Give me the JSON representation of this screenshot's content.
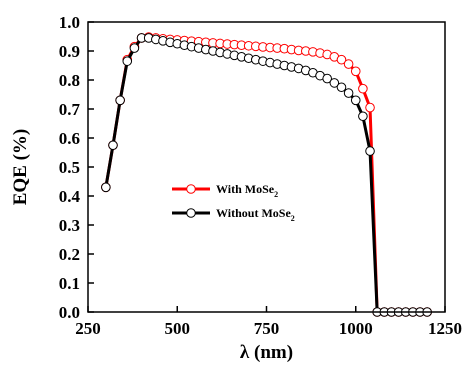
{
  "chart_data": {
    "type": "line",
    "xlabel": "λ (nm)",
    "ylabel": "EQE (%)",
    "xlim": [
      250,
      1250
    ],
    "ylim": [
      0.0,
      1.0
    ],
    "xticks": [
      250,
      500,
      750,
      1000,
      1250
    ],
    "yticks": [
      0.0,
      0.1,
      0.2,
      0.3,
      0.4,
      0.5,
      0.6,
      0.7,
      0.8,
      0.9,
      1.0
    ],
    "grid": false,
    "legend_position": "center-left",
    "series": [
      {
        "name": "With MoSe",
        "name_subscript": "2",
        "color": "#ff0000",
        "marker_stroke": "#ff0000",
        "x": [
          300,
          320,
          340,
          360,
          380,
          400,
          420,
          440,
          460,
          480,
          500,
          520,
          540,
          560,
          580,
          600,
          620,
          640,
          660,
          680,
          700,
          720,
          740,
          760,
          780,
          800,
          820,
          840,
          860,
          880,
          900,
          920,
          940,
          960,
          980,
          1000,
          1020,
          1040,
          1060,
          1080,
          1100,
          1120,
          1140,
          1160,
          1180,
          1200
        ],
        "y": [
          0.43,
          0.575,
          0.73,
          0.87,
          0.915,
          0.945,
          0.948,
          0.945,
          0.942,
          0.94,
          0.938,
          0.936,
          0.934,
          0.932,
          0.93,
          0.928,
          0.926,
          0.924,
          0.922,
          0.92,
          0.918,
          0.916,
          0.914,
          0.912,
          0.91,
          0.908,
          0.905,
          0.902,
          0.9,
          0.897,
          0.893,
          0.888,
          0.88,
          0.87,
          0.855,
          0.83,
          0.77,
          0.705,
          0.0,
          0.0,
          0.0,
          0.0,
          0.0,
          0.0,
          0.0,
          0.0
        ]
      },
      {
        "name": "Without MoSe",
        "name_subscript": "2",
        "color": "#000000",
        "marker_stroke": "#000000",
        "x": [
          300,
          320,
          340,
          360,
          380,
          400,
          420,
          440,
          460,
          480,
          500,
          520,
          540,
          560,
          580,
          600,
          620,
          640,
          660,
          680,
          700,
          720,
          740,
          760,
          780,
          800,
          820,
          840,
          860,
          880,
          900,
          920,
          940,
          960,
          980,
          1000,
          1020,
          1040,
          1060,
          1080,
          1100,
          1120,
          1140,
          1160,
          1180,
          1200
        ],
        "y": [
          0.43,
          0.575,
          0.73,
          0.865,
          0.91,
          0.945,
          0.945,
          0.94,
          0.935,
          0.93,
          0.925,
          0.92,
          0.915,
          0.91,
          0.905,
          0.9,
          0.895,
          0.89,
          0.885,
          0.88,
          0.875,
          0.87,
          0.865,
          0.86,
          0.855,
          0.85,
          0.845,
          0.84,
          0.833,
          0.825,
          0.815,
          0.805,
          0.79,
          0.775,
          0.755,
          0.73,
          0.675,
          0.555,
          0.0,
          0.0,
          0.0,
          0.0,
          0.0,
          0.0,
          0.0,
          0.0
        ]
      }
    ]
  }
}
